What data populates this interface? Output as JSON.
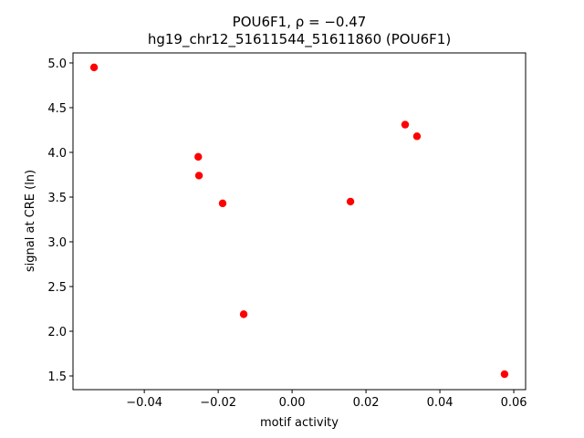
{
  "chart_data": {
    "type": "scatter",
    "title": "POU6F1, ρ = −0.47",
    "subtitle": "hg19_chr12_51611544_51611860 (POU6F1)",
    "x_label": "motif activity",
    "y_label": "signal at CRE (ln)",
    "color": "#ff0000",
    "x": [
      -0.0536,
      -0.0254,
      -0.0252,
      -0.0188,
      -0.0131,
      0.0158,
      0.0306,
      0.0338,
      0.0575
    ],
    "values": [
      4.95,
      3.95,
      3.74,
      3.43,
      2.19,
      3.45,
      4.31,
      4.18,
      1.52
    ],
    "xlim": [
      -0.0593,
      0.0632
    ],
    "ylim": [
      1.347,
      5.112
    ],
    "xticks": [
      {
        "value": -0.04,
        "label": "−0.04"
      },
      {
        "value": -0.02,
        "label": "−0.02"
      },
      {
        "value": 0,
        "label": "0.00"
      },
      {
        "value": 0.02,
        "label": "0.02"
      },
      {
        "value": 0.04,
        "label": "0.04"
      },
      {
        "value": 0.06,
        "label": "0.06"
      }
    ],
    "yticks": [
      1.5,
      {
        "value": 2,
        "label": "2.0"
      },
      2.5,
      {
        "value": 3,
        "label": "3.0"
      },
      3.5,
      {
        "value": 4,
        "label": "4.0"
      },
      4.5,
      {
        "value": 5,
        "label": "5.0"
      }
    ]
  }
}
